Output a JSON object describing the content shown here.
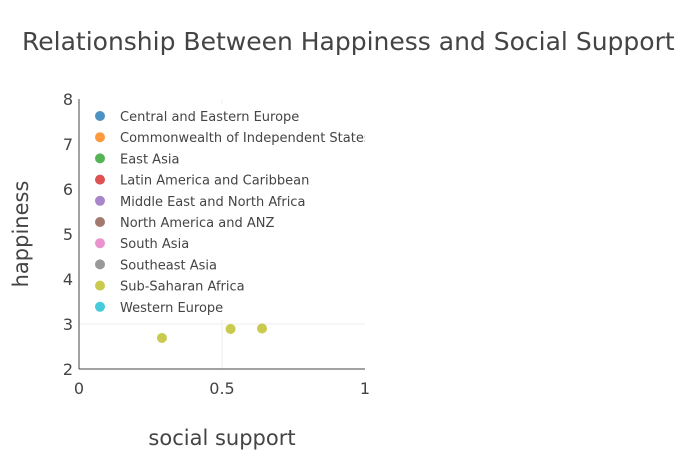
{
  "chart_data": {
    "type": "scatter",
    "title": "Relationship Between Happiness and Social Support",
    "xlabel": "social support",
    "ylabel": "happiness",
    "xlim": [
      0,
      1
    ],
    "ylim": [
      2,
      8
    ],
    "x_ticks": [
      "0",
      "0.5",
      "1"
    ],
    "y_ticks": [
      "2",
      "3",
      "4",
      "5",
      "6",
      "7",
      "8"
    ],
    "grid": true,
    "legend_position": "top-left inside",
    "legend": [
      {
        "name": "Central and Eastern Europe",
        "color": "#1f77b4"
      },
      {
        "name": "Commonwealth of Independent States",
        "color": "#ff7f0e"
      },
      {
        "name": "East Asia",
        "color": "#2ca02c"
      },
      {
        "name": "Latin America and Caribbean",
        "color": "#d62728"
      },
      {
        "name": "Middle East and North Africa",
        "color": "#9467bd"
      },
      {
        "name": "North America and ANZ",
        "color": "#8c564b"
      },
      {
        "name": "South Asia",
        "color": "#e377c2"
      },
      {
        "name": "Southeast Asia",
        "color": "#7f7f7f"
      },
      {
        "name": "Sub-Saharan Africa",
        "color": "#bcbd22"
      },
      {
        "name": "Western Europe",
        "color": "#17becf"
      }
    ],
    "series": [
      {
        "name": "Sub-Saharan Africa",
        "color": "#bcbd22",
        "points": [
          {
            "x": 0.29,
            "y": 2.69
          },
          {
            "x": 0.53,
            "y": 2.89
          },
          {
            "x": 0.64,
            "y": 2.9
          }
        ]
      }
    ]
  }
}
